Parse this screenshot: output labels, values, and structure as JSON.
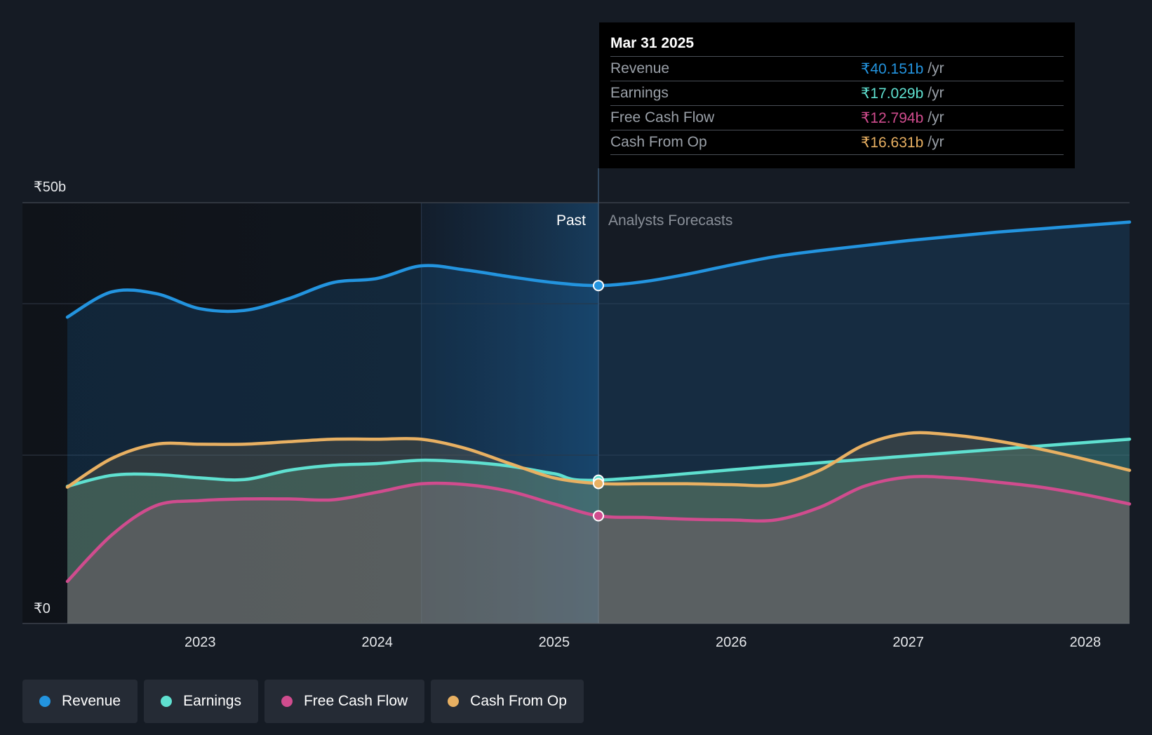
{
  "chart_data": {
    "type": "line",
    "x_unit": "year",
    "x_range": [
      2022.25,
      2028.25
    ],
    "divider_x": 2025.25,
    "highlight_start_x": 2024.25,
    "ylim": [
      0,
      50
    ],
    "y_ticks": [
      {
        "value": 50,
        "label": "₹50b"
      },
      {
        "value": 0,
        "label": "₹0"
      }
    ],
    "x_ticks": [
      {
        "value": 2023,
        "label": "2023"
      },
      {
        "value": 2024,
        "label": "2024"
      },
      {
        "value": 2025,
        "label": "2025"
      },
      {
        "value": 2026,
        "label": "2026"
      },
      {
        "value": 2027,
        "label": "2027"
      },
      {
        "value": 2028,
        "label": "2028"
      }
    ],
    "past_label": "Past",
    "forecast_label": "Analysts Forecasts",
    "series": [
      {
        "name": "Revenue",
        "color": "#2394df",
        "x": [
          2022.25,
          2022.5,
          2022.75,
          2023.0,
          2023.25,
          2023.5,
          2023.75,
          2024.0,
          2024.25,
          2024.5,
          2024.75,
          2025.0,
          2025.25,
          2025.5,
          2025.75,
          2026.0,
          2026.25,
          2026.5,
          2026.75,
          2027.0,
          2027.25,
          2027.5,
          2027.75,
          2028.0,
          2028.25
        ],
        "values": [
          36.4,
          39.4,
          39.2,
          37.4,
          37.2,
          38.6,
          40.5,
          41.0,
          42.5,
          42.0,
          41.2,
          40.5,
          40.15,
          40.6,
          41.5,
          42.6,
          43.6,
          44.3,
          44.9,
          45.5,
          46.0,
          46.5,
          46.9,
          47.3,
          47.7
        ]
      },
      {
        "name": "Earnings",
        "color": "#5fe0d0",
        "x": [
          2022.25,
          2022.5,
          2022.75,
          2023.0,
          2023.25,
          2023.5,
          2023.75,
          2024.0,
          2024.25,
          2024.5,
          2024.75,
          2025.0,
          2025.25,
          2026.25,
          2027.25,
          2028.25
        ],
        "values": [
          16.3,
          17.6,
          17.7,
          17.3,
          17.1,
          18.2,
          18.8,
          19.0,
          19.4,
          19.2,
          18.7,
          17.8,
          17.03,
          18.7,
          20.3,
          21.9
        ]
      },
      {
        "name": "Free Cash Flow",
        "color": "#d04c8e",
        "x": [
          2022.25,
          2022.5,
          2022.75,
          2023.0,
          2023.25,
          2023.5,
          2023.75,
          2024.0,
          2024.25,
          2024.5,
          2024.75,
          2025.0,
          2025.25,
          2025.5,
          2025.75,
          2026.0,
          2026.25,
          2026.5,
          2026.75,
          2027.0,
          2027.25,
          2027.5,
          2027.75,
          2028.0,
          2028.25
        ],
        "values": [
          5.0,
          10.5,
          14.0,
          14.6,
          14.8,
          14.8,
          14.7,
          15.6,
          16.6,
          16.5,
          15.7,
          14.2,
          12.79,
          12.6,
          12.4,
          12.3,
          12.3,
          13.8,
          16.3,
          17.4,
          17.3,
          16.8,
          16.2,
          15.3,
          14.2
        ]
      },
      {
        "name": "Cash From Op",
        "color": "#e8b062",
        "x": [
          2022.25,
          2022.5,
          2022.75,
          2023.0,
          2023.25,
          2023.5,
          2023.75,
          2024.0,
          2024.25,
          2024.5,
          2024.75,
          2025.0,
          2025.25,
          2025.5,
          2025.75,
          2026.0,
          2026.25,
          2026.5,
          2026.75,
          2027.0,
          2027.25,
          2027.5,
          2027.75,
          2028.0,
          2028.25
        ],
        "values": [
          16.2,
          19.6,
          21.3,
          21.3,
          21.3,
          21.6,
          21.9,
          21.9,
          21.9,
          20.8,
          19.0,
          17.3,
          16.63,
          16.6,
          16.6,
          16.5,
          16.5,
          18.2,
          21.2,
          22.6,
          22.4,
          21.7,
          20.7,
          19.5,
          18.2
        ]
      }
    ],
    "tooltip": {
      "date": "Mar 31 2025",
      "rows": [
        {
          "name": "Revenue",
          "value": "₹40.151b",
          "unit": "/yr",
          "color": "#2394df"
        },
        {
          "name": "Earnings",
          "value": "₹17.029b",
          "unit": "/yr",
          "color": "#5fe0d0"
        },
        {
          "name": "Free Cash Flow",
          "value": "₹12.794b",
          "unit": "/yr",
          "color": "#d04c8e"
        },
        {
          "name": "Cash From Op",
          "value": "₹16.631b",
          "unit": "/yr",
          "color": "#e8b062"
        }
      ]
    },
    "legend": [
      {
        "name": "Revenue",
        "color": "#2394df"
      },
      {
        "name": "Earnings",
        "color": "#5fe0d0"
      },
      {
        "name": "Free Cash Flow",
        "color": "#d04c8e"
      },
      {
        "name": "Cash From Op",
        "color": "#e8b062"
      }
    ]
  }
}
